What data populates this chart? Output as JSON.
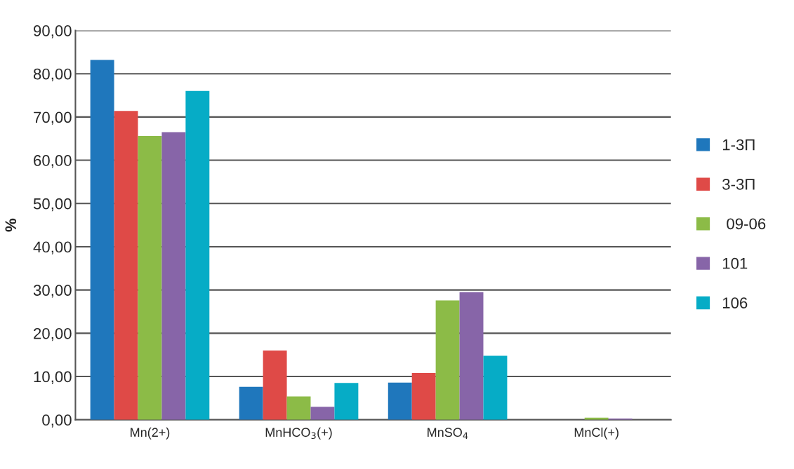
{
  "chart_data": {
    "type": "bar",
    "ylabel": "%",
    "categories": [
      "Mn(2+)",
      "MnHCO$_{3}$(+)",
      "MnSO$_{4}$",
      "MnCl(+)"
    ],
    "series": [
      {
        "name": "1-3П",
        "color": "#1f77bc",
        "values": [
          83.2,
          7.6,
          8.6,
          0
        ]
      },
      {
        "name": "3-3П",
        "color": "#df4a47",
        "values": [
          71.4,
          16.0,
          10.8,
          0
        ]
      },
      {
        "name": " 09-06",
        "color": "#8cbb47",
        "values": [
          65.6,
          5.4,
          27.6,
          0.5
        ]
      },
      {
        "name": "101",
        "color": "#8765a8",
        "values": [
          66.5,
          3.0,
          29.5,
          0.3
        ]
      },
      {
        "name": "106",
        "color": "#06acc6",
        "values": [
          76.0,
          8.5,
          14.8,
          0
        ]
      }
    ],
    "ylim": [
      0,
      90
    ],
    "yticks": [
      {
        "value": 0,
        "label": "0,00"
      },
      {
        "value": 10,
        "label": "10,00"
      },
      {
        "value": 20,
        "label": "20,00"
      },
      {
        "value": 30,
        "label": "30,00"
      },
      {
        "value": 40,
        "label": "40,00"
      },
      {
        "value": 50,
        "label": "50,00"
      },
      {
        "value": 60,
        "label": "60,00"
      },
      {
        "value": 70,
        "label": "70,00"
      },
      {
        "value": 80,
        "label": "80,00"
      },
      {
        "value": 90,
        "label": "90,00"
      }
    ],
    "grid": "y",
    "legend": "right"
  }
}
